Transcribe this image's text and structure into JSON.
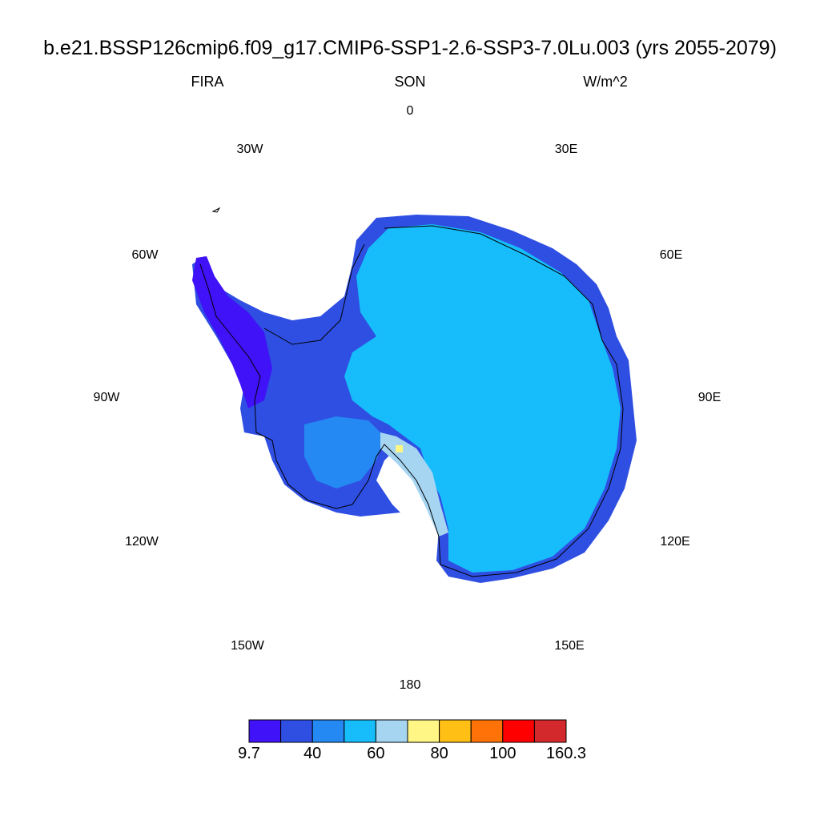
{
  "title": "b.e21.BSSP126cmip6.f09_g17.CMIP6-SSP1-2.6-SSP3-7.0Lu.003 (yrs 2055-2079)",
  "variable": "FIRA",
  "season": "SON",
  "units": "W/m^2",
  "longitude_labels": [
    {
      "text": "0",
      "name": "lon-label-0"
    },
    {
      "text": "30E",
      "name": "lon-label-30e"
    },
    {
      "text": "60E",
      "name": "lon-label-60e"
    },
    {
      "text": "90E",
      "name": "lon-label-90e"
    },
    {
      "text": "120E",
      "name": "lon-label-120e"
    },
    {
      "text": "150E",
      "name": "lon-label-150e"
    },
    {
      "text": "180",
      "name": "lon-label-180"
    },
    {
      "text": "150W",
      "name": "lon-label-150w"
    },
    {
      "text": "120W",
      "name": "lon-label-120w"
    },
    {
      "text": "90W",
      "name": "lon-label-90w"
    },
    {
      "text": "60W",
      "name": "lon-label-60w"
    },
    {
      "text": "30W",
      "name": "lon-label-30w"
    }
  ],
  "colorbar": {
    "colors": [
      "#3f12f7",
      "#2f4fe3",
      "#2489f2",
      "#16bdfa",
      "#a6d5f2",
      "#fff685",
      "#ffbf14",
      "#ff7207",
      "#ff0000",
      "#d3292c"
    ],
    "tick_labels": [
      "9.7",
      "40",
      "60",
      "80",
      "100",
      "160.3"
    ]
  }
}
